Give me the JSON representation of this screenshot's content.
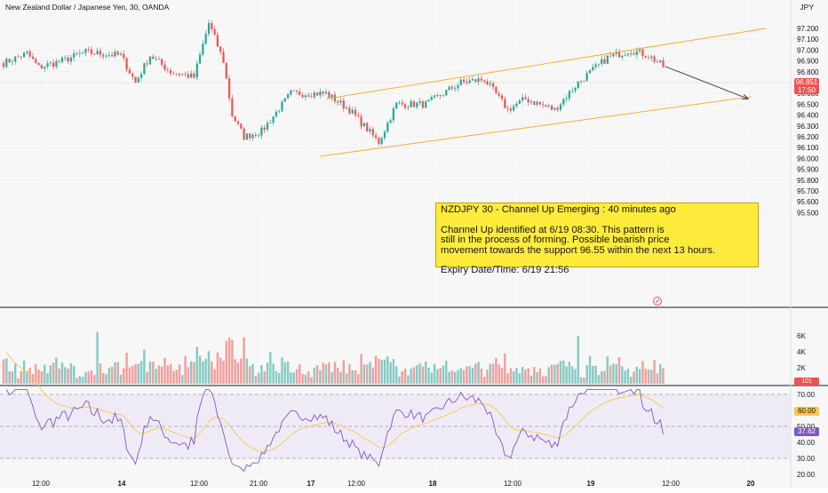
{
  "header": {
    "symbol_title": "New Zealand Dollar / Japanese Yen, 30, OANDA",
    "currency": "JPY"
  },
  "price_axis": {
    "ticks": [
      "97.200",
      "97.100",
      "97.000",
      "96.900",
      "96.800",
      "96.700",
      "96.600",
      "96.500",
      "96.400",
      "96.300",
      "96.200",
      "96.100",
      "96.000",
      "95.900",
      "95.800",
      "95.700",
      "95.600",
      "95.500"
    ],
    "last_price": "96.851",
    "countdown": "17:50"
  },
  "volume_axis": {
    "ticks": [
      "6K",
      "4K",
      "2K"
    ],
    "last_label": "101"
  },
  "rsi_axis": {
    "ticks": [
      "70.00",
      "50.00",
      "40.00",
      "30.00",
      "20.00"
    ],
    "rsi_ma_value": "60.00",
    "rsi_value": "37.62"
  },
  "time_axis": {
    "labels": [
      "12:00",
      "14",
      "12:00",
      "21:00",
      "17",
      "12:00",
      "18",
      "12:00",
      "19",
      "12:00",
      "20"
    ]
  },
  "annotation": {
    "header": "NZDJPY 30 - Channel Up Emerging : 40 minutes ago",
    "body": "Channel Up identified at 6/19 08:30. This pattern is\nstill in the process of forming. Possible bearish price\nmovement towards the support 96.55 within the next 13 hours.",
    "expiry": "Expiry Date/Time: 6/19 21:56"
  },
  "colors": {
    "up": "#26a69a",
    "down": "#ef5350",
    "channel": "#f5a623",
    "rsi": "#7e57c2",
    "rsi_ma": "#f9c74f",
    "note_bg": "#ffeb3b"
  },
  "chart_data": {
    "type": "candlestick",
    "price_range": [
      95.5,
      97.24
    ],
    "volume_range": [
      0,
      8000
    ],
    "rsi_range": [
      20,
      75
    ],
    "channel": {
      "upper": [
        {
          "bar": 110,
          "price": 96.55
        },
        {
          "bar": 260,
          "price": 97.2
        }
      ],
      "lower": [
        {
          "bar": 108,
          "price": 96.02
        },
        {
          "bar": 255,
          "price": 96.57
        }
      ]
    },
    "projection": {
      "from": {
        "bar": 225,
        "price": 96.85
      },
      "to": {
        "bar": 254,
        "price": 96.55
      }
    },
    "rsi_levels": [
      70,
      50,
      30
    ],
    "waypoints": [
      [
        0,
        96.88
      ],
      [
        8,
        96.97
      ],
      [
        12,
        96.84
      ],
      [
        20,
        96.9
      ],
      [
        28,
        96.98
      ],
      [
        40,
        96.95
      ],
      [
        45,
        96.7
      ],
      [
        50,
        96.95
      ],
      [
        57,
        96.8
      ],
      [
        65,
        96.75
      ],
      [
        70,
        97.25
      ],
      [
        75,
        96.9
      ],
      [
        78,
        96.4
      ],
      [
        82,
        96.2
      ],
      [
        88,
        96.25
      ],
      [
        98,
        96.6
      ],
      [
        110,
        96.6
      ],
      [
        118,
        96.45
      ],
      [
        128,
        96.15
      ],
      [
        134,
        96.5
      ],
      [
        144,
        96.5
      ],
      [
        156,
        96.7
      ],
      [
        164,
        96.73
      ],
      [
        172,
        96.45
      ],
      [
        178,
        96.55
      ],
      [
        188,
        96.45
      ],
      [
        196,
        96.7
      ],
      [
        206,
        96.93
      ],
      [
        214,
        97.0
      ],
      [
        220,
        96.95
      ],
      [
        225,
        96.85
      ]
    ],
    "volume_spikes": [
      [
        32,
        6500
      ],
      [
        62,
        3500
      ],
      [
        78,
        5500
      ],
      [
        82,
        5800
      ],
      [
        91,
        4000
      ],
      [
        127,
        3500
      ],
      [
        196,
        6000
      ],
      [
        200,
        3500
      ]
    ]
  }
}
